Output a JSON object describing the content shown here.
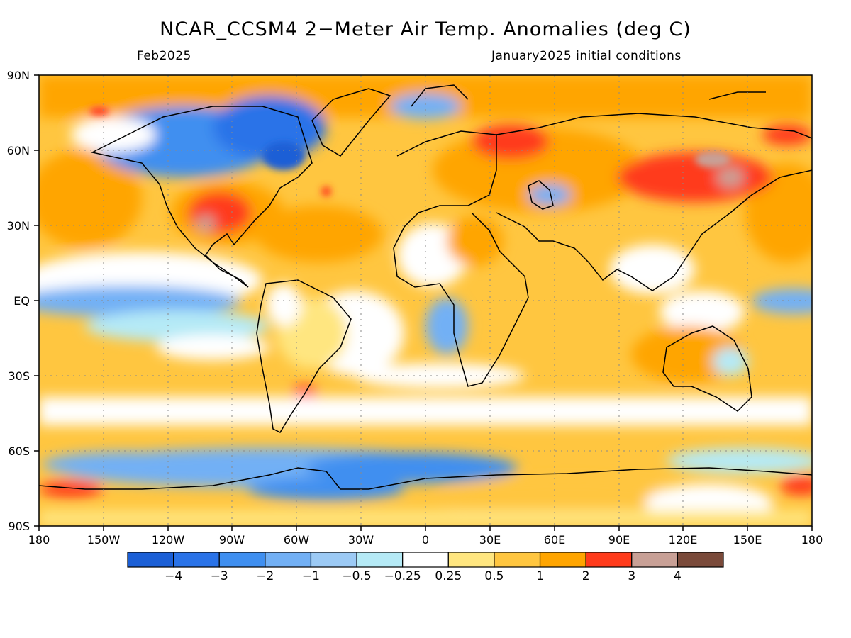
{
  "title": "NCAR_CCSM4 2−Meter Air Temp. Anomalies (deg C)",
  "subtitle_left": "Feb2025",
  "subtitle_right": "January2025 initial conditions",
  "y_axis_labels": [
    "90N",
    "60N",
    "30N",
    "EQ",
    "30S",
    "60S",
    "90S"
  ],
  "x_axis_labels": [
    "180",
    "150W",
    "120W",
    "90W",
    "60W",
    "30W",
    "0",
    "30E",
    "60E",
    "90E",
    "120E",
    "150E",
    "180"
  ],
  "colorbar": {
    "colors": [
      "#1b5fd6",
      "#2a73e8",
      "#3f8ff0",
      "#72b0f5",
      "#9ccaf5",
      "#b5eaf6",
      "#ffffff",
      "#ffe680",
      "#ffc640",
      "#ffa500",
      "#ff3b1b",
      "#c8a096",
      "#7a4a3a"
    ],
    "labels": [
      "−4",
      "−3",
      "−2",
      "−1",
      "−0.5",
      "−0.25",
      "0.25",
      "0.5",
      "1",
      "2",
      "3",
      "4"
    ]
  }
}
